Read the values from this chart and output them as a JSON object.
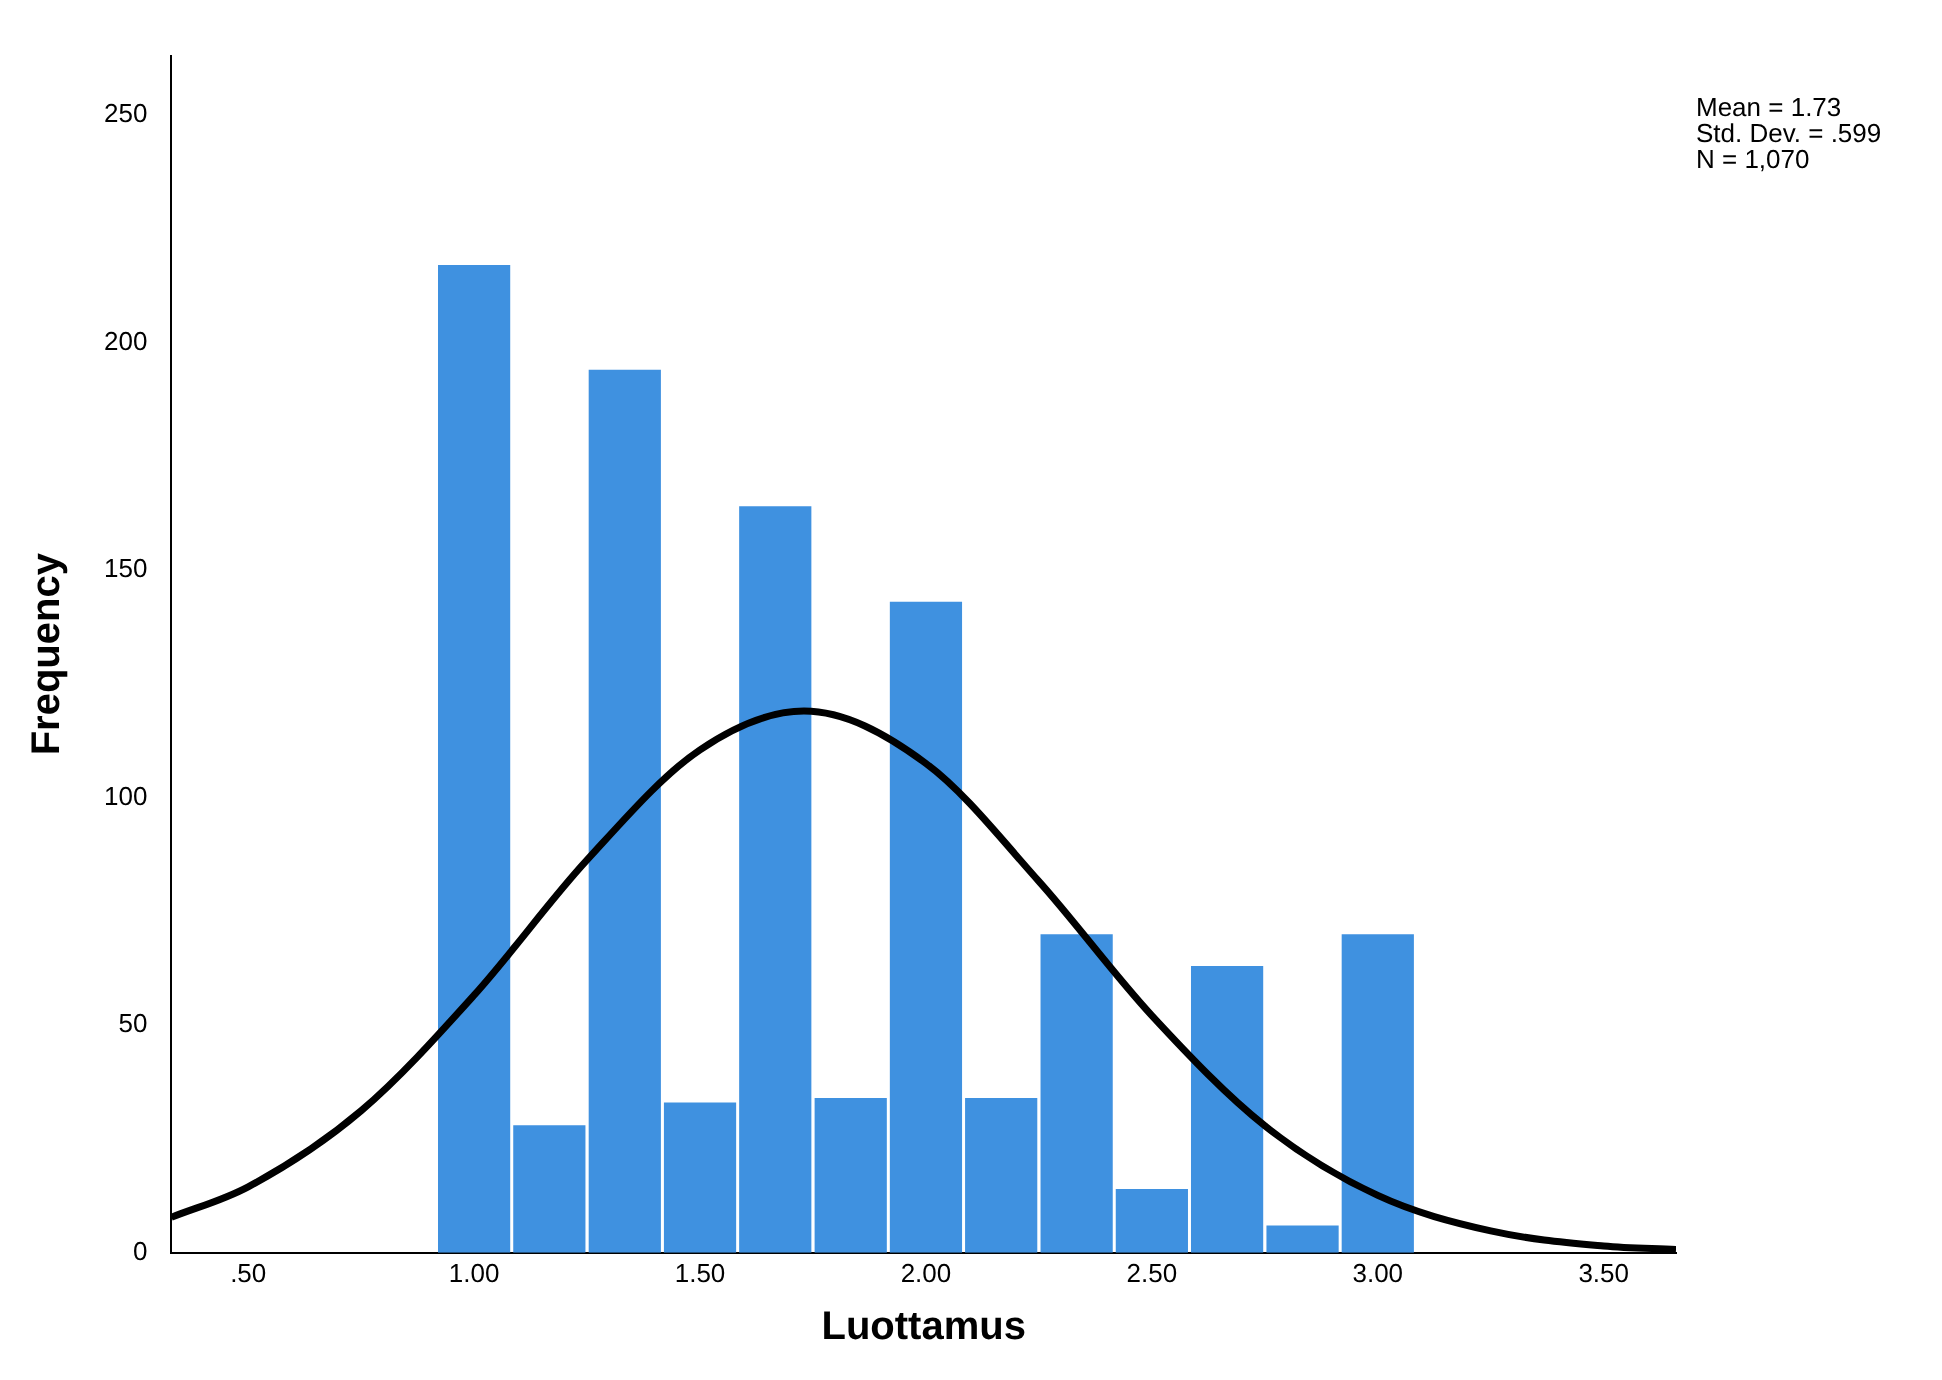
{
  "chart_data": {
    "type": "histogram",
    "xlabel": "Luottamus",
    "ylabel": "Frequency",
    "bins": [
      0.917,
      1.083,
      1.25,
      1.417,
      1.583,
      1.75,
      1.917,
      2.083,
      2.25,
      2.417,
      2.583,
      2.75,
      2.917,
      3.083
    ],
    "values": [
      217,
      28,
      194,
      33,
      164,
      34,
      143,
      34,
      70,
      14,
      63,
      6,
      70
    ],
    "color": "#3f91e0",
    "series": [
      {
        "type": "line",
        "color": "#000000",
        "x": [
          0.33,
          0.5,
          0.75,
          1.0,
          1.25,
          1.5,
          1.73,
          2.0,
          2.25,
          2.5,
          2.75,
          3.0,
          3.25,
          3.5,
          3.66
        ],
        "values": [
          7.8,
          14.5,
          31.2,
          56.6,
          86.3,
          110.5,
          119,
          107.5,
          81.6,
          52.1,
          27.9,
          12.6,
          4.8,
          1.5,
          0.7
        ]
      }
    ],
    "xlim": [
      0.33,
      3.66
    ],
    "xticks": [
      {
        "value": 0.5,
        "label": ".50"
      },
      {
        "value": 1.0,
        "label": "1.00"
      },
      {
        "value": 1.5,
        "label": "1.50"
      },
      {
        "value": 2.0,
        "label": "2.00"
      },
      {
        "value": 2.5,
        "label": "2.50"
      },
      {
        "value": 3.0,
        "label": "3.00"
      },
      {
        "value": 3.5,
        "label": "3.50"
      }
    ],
    "ylim": [
      0,
      263
    ],
    "yticks": [
      0,
      50,
      100,
      150,
      200,
      250
    ],
    "grid": false,
    "legend": false,
    "annotations": [
      "Mean = 1.73",
      "Std. Dev. = .599",
      "N = 1,070"
    ]
  }
}
